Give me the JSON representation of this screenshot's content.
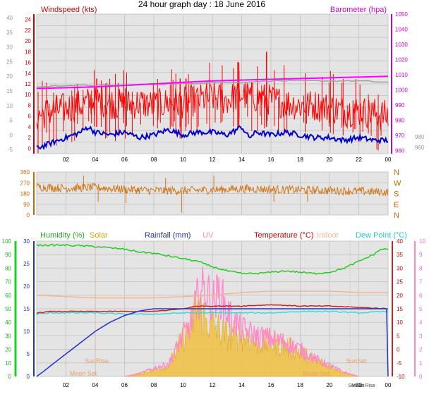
{
  "title": "24 hour graph day : 18 June 2016",
  "x_ticks": [
    "02",
    "04",
    "06",
    "08",
    "10",
    "12",
    "14",
    "16",
    "18",
    "20",
    "22",
    "00"
  ],
  "x_ticks_bottom": [
    "02",
    "04",
    "06",
    "08",
    "10",
    "12",
    "14",
    "16",
    "18",
    "20",
    "22",
    "00"
  ],
  "colors": {
    "wind": "#ff0000",
    "gust_bar": "#ff0000",
    "avg_wind": "#0000cc",
    "baro": "#ff00ff",
    "baro_grey": "#a0a0a0",
    "dir": "#d07a20",
    "humidity": "#22cc22",
    "solar": "#f0c040",
    "rain": "#2233cc",
    "uv": "#ff88cc",
    "temp": "#cc2222",
    "indoor": "#f0b890",
    "dew": "#33dddd",
    "panel": "#e4e4e4"
  },
  "chart_data": [
    {
      "type": "line",
      "panel": "wind-baro",
      "left_axis": {
        "label": "Windspeed (kts)",
        "ylim": [
          -1,
          25
        ],
        "ticks": [
          "24",
          "22",
          "20",
          "18",
          "16",
          "14",
          "12",
          "10",
          "8",
          "6",
          "4",
          "2",
          "0"
        ]
      },
      "outer_left_axis": {
        "ticks": [
          "40",
          "35",
          "30",
          "25",
          "20",
          "15",
          "10",
          "5",
          "0",
          "-5"
        ]
      },
      "right_axis": {
        "label": "Barometer (hpa)",
        "ylim": [
          958,
          1050
        ],
        "ticks": [
          "1050",
          "1040",
          "1030",
          "1020",
          "1010",
          "1000",
          "990",
          "980",
          "970",
          "960"
        ]
      },
      "outer_right_axis": {
        "ticks": [
          "980",
          "960"
        ]
      },
      "series": [
        {
          "name": "Windspeed (kts)",
          "axis": "left",
          "x": [
            0,
            1,
            2,
            3,
            4,
            5,
            6,
            7,
            8,
            9,
            10,
            11,
            12,
            13,
            14,
            15,
            16,
            17,
            18,
            19,
            20,
            21,
            22,
            23,
            24
          ],
          "values": [
            6,
            7,
            7.5,
            8,
            9,
            8.5,
            8,
            8.5,
            8,
            8.5,
            8.5,
            9,
            9.5,
            9,
            10,
            9.5,
            9,
            8.5,
            8,
            8,
            7.5,
            7,
            7,
            6.5,
            6
          ]
        },
        {
          "name": "Average wind",
          "axis": "left",
          "x": [
            0,
            0.5,
            1,
            2,
            3,
            3.5,
            4,
            5,
            6,
            7,
            8,
            9,
            10,
            11,
            12,
            13,
            14,
            14.5,
            15,
            16,
            17,
            18,
            19,
            20,
            21,
            22,
            23,
            24
          ],
          "values": [
            0,
            0.5,
            1,
            2,
            3,
            4,
            3,
            2.5,
            3,
            2,
            2.5,
            3.5,
            2.5,
            3,
            3,
            2.5,
            4,
            2,
            3,
            2.5,
            3,
            2.5,
            2,
            2,
            1.5,
            2,
            1.5,
            1.5
          ]
        },
        {
          "name": "Barometer (hpa)",
          "axis": "right",
          "x": [
            0,
            4,
            8,
            12,
            16,
            20,
            24
          ],
          "values": [
            1001,
            1002,
            1004,
            1006,
            1007,
            1008,
            1009
          ]
        },
        {
          "name": "Barometer trend",
          "axis": "right",
          "x": [
            0,
            2,
            4,
            6,
            8,
            10,
            12,
            14,
            16,
            18,
            20,
            22,
            24
          ],
          "values": [
            1002,
            1003,
            1003,
            1003,
            1004,
            1004,
            1005,
            1005,
            1006,
            1006,
            1006,
            1006,
            1005
          ]
        }
      ]
    },
    {
      "type": "scatter",
      "panel": "wind-direction",
      "left_axis": {
        "ylim": [
          0,
          360
        ],
        "ticks": [
          "360",
          "270",
          "180",
          "90",
          "0"
        ]
      },
      "right_axis": {
        "ticks": [
          "N",
          "W",
          "S",
          "E",
          "N"
        ]
      },
      "series": [
        {
          "name": "Wind direction",
          "x": [
            0,
            2,
            4,
            6,
            8,
            10,
            12,
            14,
            16,
            18,
            20,
            22,
            24
          ],
          "values": [
            235,
            225,
            230,
            215,
            205,
            205,
            210,
            220,
            215,
            210,
            205,
            200,
            190
          ]
        }
      ]
    },
    {
      "type": "line",
      "panel": "temp-hum-rain",
      "legend": [
        "Humidity (%)",
        "Solar",
        "Rainfall (mm)",
        "UV",
        "Temperature (°C)",
        "Indoor",
        "Dew Point (°C)"
      ],
      "axes": {
        "humidity": {
          "ylim": [
            0,
            100
          ],
          "ticks": [
            "100",
            "90",
            "80",
            "70",
            "60",
            "50",
            "40",
            "30",
            "20",
            "10",
            "0"
          ]
        },
        "rain": {
          "ylim": [
            0,
            30
          ],
          "ticks": [
            "30",
            "25",
            "20",
            "15",
            "10",
            "5",
            "0"
          ]
        },
        "temp": {
          "ylim": [
            -10,
            40
          ],
          "ticks": [
            "40",
            "35",
            "30",
            "25",
            "20",
            "15",
            "10",
            "5",
            "0",
            "-5",
            "-10"
          ]
        },
        "uv": {
          "ylim": [
            0,
            10
          ],
          "ticks": [
            "10",
            "9",
            "8",
            "7",
            "6",
            "5",
            "4",
            "3",
            "2",
            "1",
            "0"
          ]
        }
      },
      "annotations": [
        "SunRise",
        "Moon Set",
        "SunSet",
        "Moon Rise"
      ],
      "series": [
        {
          "name": "Humidity (%)",
          "axis": "humidity",
          "x": [
            0,
            2,
            4,
            5,
            6,
            7,
            8,
            9,
            10,
            11,
            12,
            13,
            14,
            15,
            16,
            17,
            18,
            19,
            20,
            21,
            22,
            23,
            23.5,
            24
          ],
          "values": [
            97,
            97,
            96,
            95,
            94,
            92,
            91,
            89,
            87,
            85,
            81,
            78,
            76,
            76,
            77,
            78,
            77,
            76,
            77,
            80,
            85,
            90,
            94,
            94
          ]
        },
        {
          "name": "Indoor",
          "axis": "temp",
          "x": [
            0,
            2,
            4,
            6,
            8,
            10,
            12,
            14,
            16,
            18,
            20,
            22,
            24
          ],
          "values": [
            20,
            19.5,
            19,
            19,
            19,
            19.5,
            20,
            21,
            21.5,
            21.5,
            21.5,
            21,
            21
          ]
        },
        {
          "name": "Temperature (°C)",
          "axis": "temp",
          "x": [
            0,
            1,
            2,
            4,
            6,
            8,
            10,
            11,
            12,
            13,
            14,
            16,
            18,
            20,
            22,
            24
          ],
          "values": [
            13.5,
            14,
            14,
            14,
            14,
            14,
            15,
            16,
            16,
            16,
            16,
            16.5,
            16,
            16,
            15.5,
            15
          ]
        },
        {
          "name": "Dew Point (°C)",
          "axis": "temp",
          "x": [
            0,
            1,
            2,
            4,
            6,
            8,
            10,
            12,
            14,
            16,
            18,
            20,
            22,
            24
          ],
          "values": [
            13,
            13.5,
            13.5,
            13.5,
            13,
            13,
            13.5,
            13.5,
            13.5,
            13.5,
            14,
            14,
            13.5,
            14
          ]
        },
        {
          "name": "Rainfall (mm)",
          "axis": "rain",
          "x": [
            0,
            0.5,
            1,
            2,
            3,
            4,
            5,
            6,
            7,
            8,
            9,
            12,
            16,
            20,
            23.9,
            24
          ],
          "values": [
            0,
            1.2,
            2.5,
            5,
            7.5,
            10,
            12,
            13.5,
            14.5,
            15,
            15,
            15,
            15,
            15,
            15,
            0
          ]
        },
        {
          "name": "Solar",
          "axis": "uv",
          "x": [
            6,
            7,
            8,
            9,
            10,
            10.5,
            11,
            11.5,
            12,
            13,
            14,
            15,
            16,
            17,
            18,
            19,
            20,
            21,
            22
          ],
          "values": [
            0,
            0.2,
            0.5,
            0.8,
            2.8,
            3.5,
            5.5,
            4.2,
            3.8,
            3,
            3,
            2.5,
            2.5,
            2.2,
            1.8,
            1.2,
            0.8,
            0.3,
            0
          ]
        },
        {
          "name": "UV",
          "axis": "uv",
          "x": [
            6,
            7,
            8,
            9,
            10,
            10.5,
            11,
            11.5,
            12,
            12.5,
            13,
            13.5,
            14,
            15,
            16,
            17,
            18,
            19,
            20,
            21,
            22
          ],
          "values": [
            0,
            0.2,
            0.6,
            0.9,
            3,
            3.8,
            5.8,
            6.6,
            5.5,
            6.2,
            4.8,
            4,
            3.5,
            3,
            2.8,
            2.5,
            2,
            1.3,
            0.8,
            0.3,
            0
          ]
        }
      ]
    }
  ]
}
